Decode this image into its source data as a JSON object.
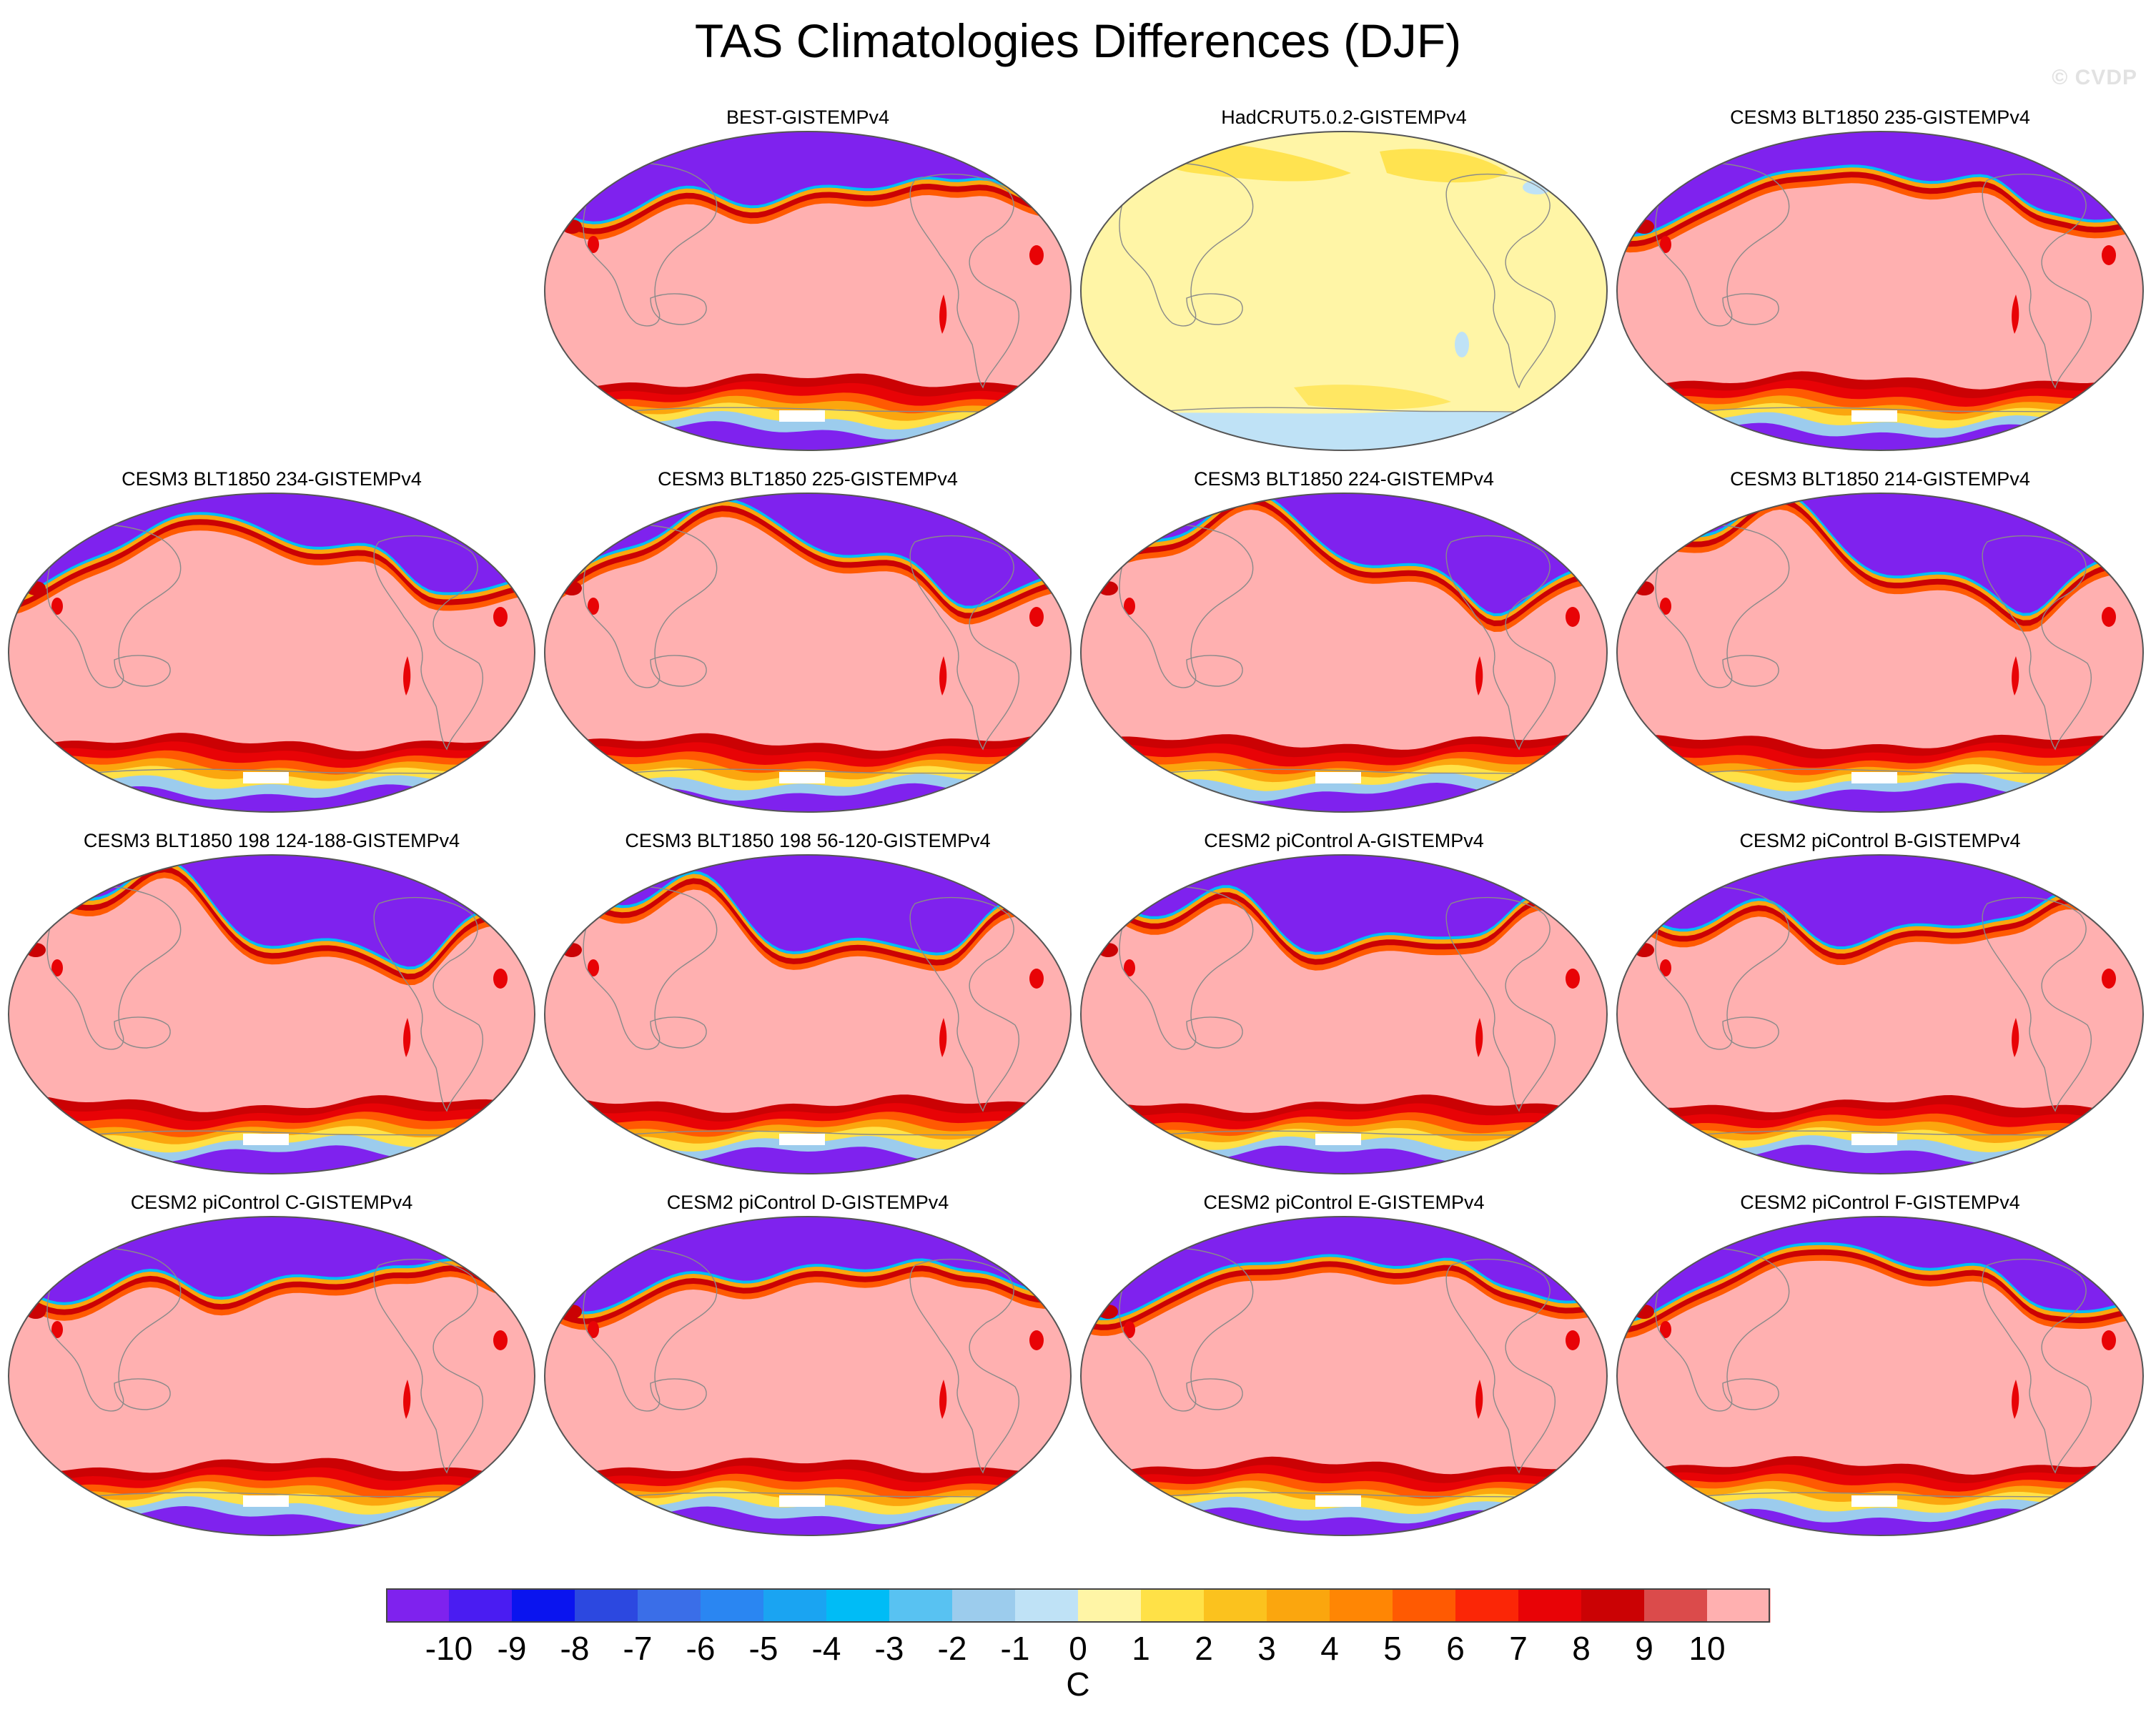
{
  "title": "TAS Climatologies Differences (DJF)",
  "watermark": "© CVDP",
  "panels": [
    {
      "title": "BEST-GISTEMPv4",
      "pattern": "model"
    },
    {
      "title": "HadCRUT5.0.2-GISTEMPv4",
      "pattern": "obs"
    },
    {
      "title": "CESM3 BLT1850 235-GISTEMPv4",
      "pattern": "model"
    },
    {
      "title": "CESM3 BLT1850 234-GISTEMPv4",
      "pattern": "model"
    },
    {
      "title": "CESM3 BLT1850 225-GISTEMPv4",
      "pattern": "model"
    },
    {
      "title": "CESM3 BLT1850 224-GISTEMPv4",
      "pattern": "model"
    },
    {
      "title": "CESM3 BLT1850 214-GISTEMPv4",
      "pattern": "model"
    },
    {
      "title": "CESM3 BLT1850 198 124-188-GISTEMPv4",
      "pattern": "model"
    },
    {
      "title": "CESM3 BLT1850 198 56-120-GISTEMPv4",
      "pattern": "model"
    },
    {
      "title": "CESM2 piControl A-GISTEMPv4",
      "pattern": "model"
    },
    {
      "title": "CESM2 piControl B-GISTEMPv4",
      "pattern": "model"
    },
    {
      "title": "CESM2 piControl C-GISTEMPv4",
      "pattern": "model"
    },
    {
      "title": "CESM2 piControl D-GISTEMPv4",
      "pattern": "model"
    },
    {
      "title": "CESM2 piControl E-GISTEMPv4",
      "pattern": "model"
    },
    {
      "title": "CESM2 piControl F-GISTEMPv4",
      "pattern": "model"
    }
  ],
  "colorbar": {
    "units": "C",
    "labels": [
      "-10",
      "-9",
      "-8",
      "-7",
      "-6",
      "-5",
      "-4",
      "-3",
      "-2",
      "-1",
      "0",
      "1",
      "2",
      "3",
      "4",
      "5",
      "6",
      "7",
      "8",
      "9",
      "10"
    ],
    "colors": [
      "#7f22ee",
      "#4a1cf2",
      "#0a14ef",
      "#2c48e0",
      "#3a6ee8",
      "#2a86f2",
      "#1aa4f2",
      "#00bcf6",
      "#58c2f2",
      "#9ccced",
      "#bfe2f6",
      "#fff5a6",
      "#ffe147",
      "#fbc21e",
      "#fba60e",
      "#ff8604",
      "#ff5a02",
      "#fb2606",
      "#e80306",
      "#cb0204",
      "#db4b4b",
      "#ffb0b0"
    ]
  }
}
